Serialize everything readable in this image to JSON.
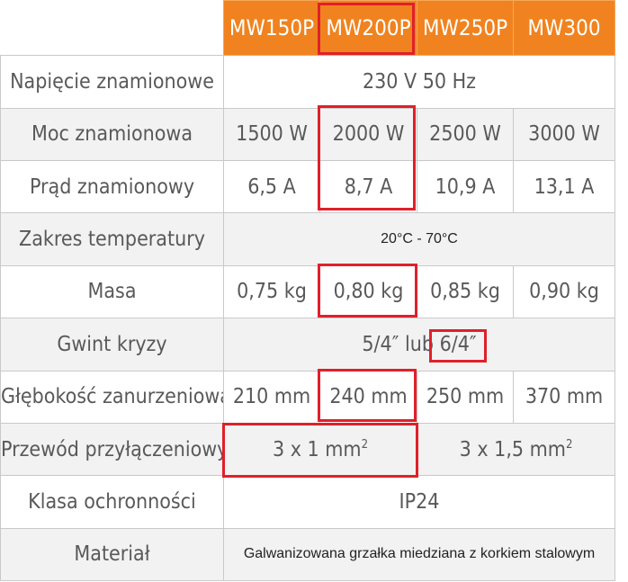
{
  "models": [
    "MW150P",
    "MW200P",
    "MW250P",
    "MW300"
  ],
  "rows": {
    "voltage": {
      "label": "Napięcie znamionowe",
      "value": "230 V 50 Hz"
    },
    "power": {
      "label": "Moc znamionowa",
      "values": [
        "1500 W",
        "2000 W",
        "2500 W",
        "3000 W"
      ]
    },
    "current": {
      "label": "Prąd znamionowy",
      "values": [
        "6,5 A",
        "8,7 A",
        "10,9 A",
        "13,1 A"
      ]
    },
    "temperature": {
      "label": "Zakres temperatury",
      "value": "20°C - 70°C"
    },
    "mass": {
      "label": "Masa",
      "values": [
        "0,75 kg",
        "0,80 kg",
        "0,85 kg",
        "0,90 kg"
      ]
    },
    "thread": {
      "label": "Gwint kryzy",
      "value_a": "5/4″",
      "value_sep": " lub ",
      "value_b": "6/4″"
    },
    "depth": {
      "label": "Głębokość zanurzeniowa",
      "values": [
        "210 mm",
        "240 mm",
        "250 mm",
        "370 mm"
      ]
    },
    "cable": {
      "label": "Przewód przyłączeniowy",
      "value_a": "3 x 1 mm",
      "value_b": "3 x 1,5 mm",
      "sup": "2"
    },
    "protection": {
      "label": "Klasa ochronności",
      "value": "IP24"
    },
    "material": {
      "label": "Materiał",
      "value": "Galwanizowana grzałka miedziana z korkiem stalowym"
    }
  },
  "colors": {
    "header": "#f0831f",
    "highlight": "#e0202a",
    "stripe": "#f2f2f2"
  }
}
